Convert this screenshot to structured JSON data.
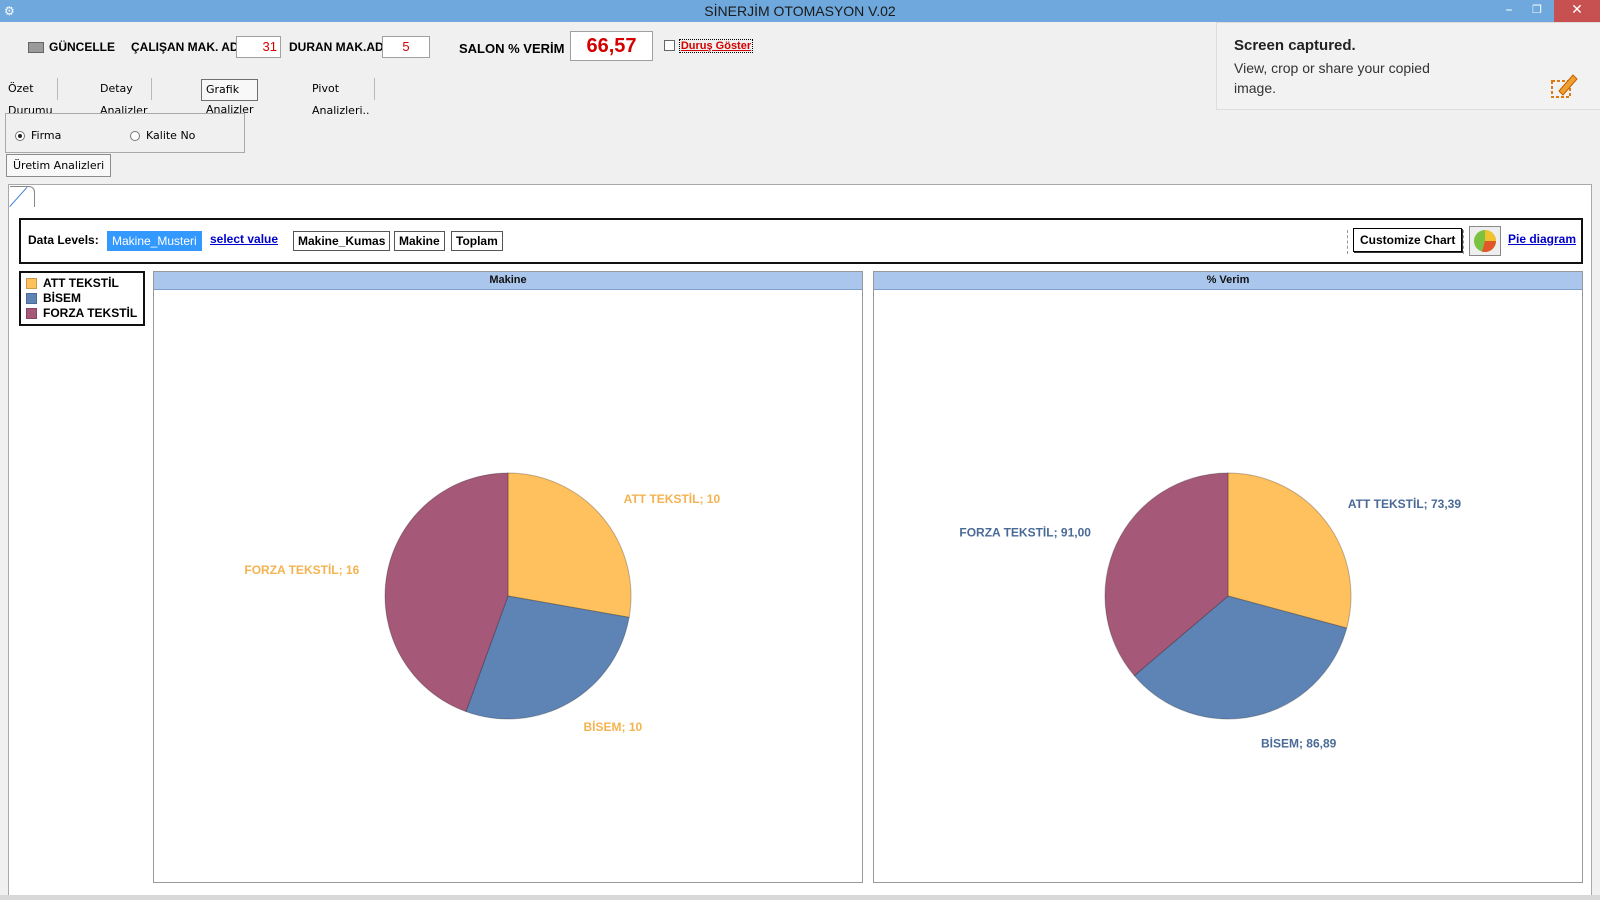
{
  "window": {
    "title": "SİNERJİM OTOMASYON V.02",
    "min": "–",
    "max": "❐",
    "close": "✕"
  },
  "toolbar": {
    "update_label": "GÜNCELLE",
    "working_label": "ÇALIŞAN MAK. AD.",
    "working_value": "31",
    "stopped_label": "DURAN MAK.AD.",
    "stopped_value": "5",
    "efficiency_label": "SALON % VERİM",
    "efficiency_value": "66,57",
    "downtime_label": "Duruş Göster"
  },
  "tabs": [
    {
      "label": "Özet Durumu"
    },
    {
      "label": "Detay Analizler"
    },
    {
      "label": "Grafik Analizler",
      "active": true
    },
    {
      "label": "Pivot Analizleri.."
    }
  ],
  "radio": {
    "firma": "Firma",
    "kalite": "Kalite No",
    "selected": "firma"
  },
  "subtab": "Üretim Analizleri",
  "data_levels": {
    "label": "Data Levels:",
    "selected": "Makine_Musteri",
    "select_value": "select value",
    "levels": [
      "Makine_Kumas",
      "Makine",
      "Toplam"
    ],
    "customize": "Customize Chart",
    "pie_link": "Pie diagram"
  },
  "legend": {
    "items": [
      {
        "label": "ATT TEKSTİL",
        "color": "#ffc05e"
      },
      {
        "label": "BİSEM",
        "color": "#5e84b6"
      },
      {
        "label": "FORZA TEKSTİL",
        "color": "#a65878"
      }
    ]
  },
  "chart_data": [
    {
      "type": "pie",
      "title": "Makine",
      "categories": [
        "ATT TEKSTİL",
        "BİSEM",
        "FORZA TEKSTİL"
      ],
      "values": [
        10,
        10,
        16
      ],
      "data_labels": [
        "ATT TEKSTİL; 10",
        "BİSEM; 10",
        "FORZA TEKSTİL; 16"
      ],
      "label_color": "#f4b350"
    },
    {
      "type": "pie",
      "title": "% Verim",
      "categories": [
        "ATT TEKSTİL",
        "BİSEM",
        "FORZA TEKSTİL"
      ],
      "values": [
        73.39,
        86.89,
        91.0
      ],
      "data_labels": [
        "ATT TEKSTİL; 73,39",
        "BİSEM; 86,89",
        "FORZA TEKSTİL; 91,00"
      ],
      "label_color": "#4a6a96"
    }
  ],
  "toast": {
    "title": "Screen captured.",
    "body": "View, crop or share your copied image."
  }
}
